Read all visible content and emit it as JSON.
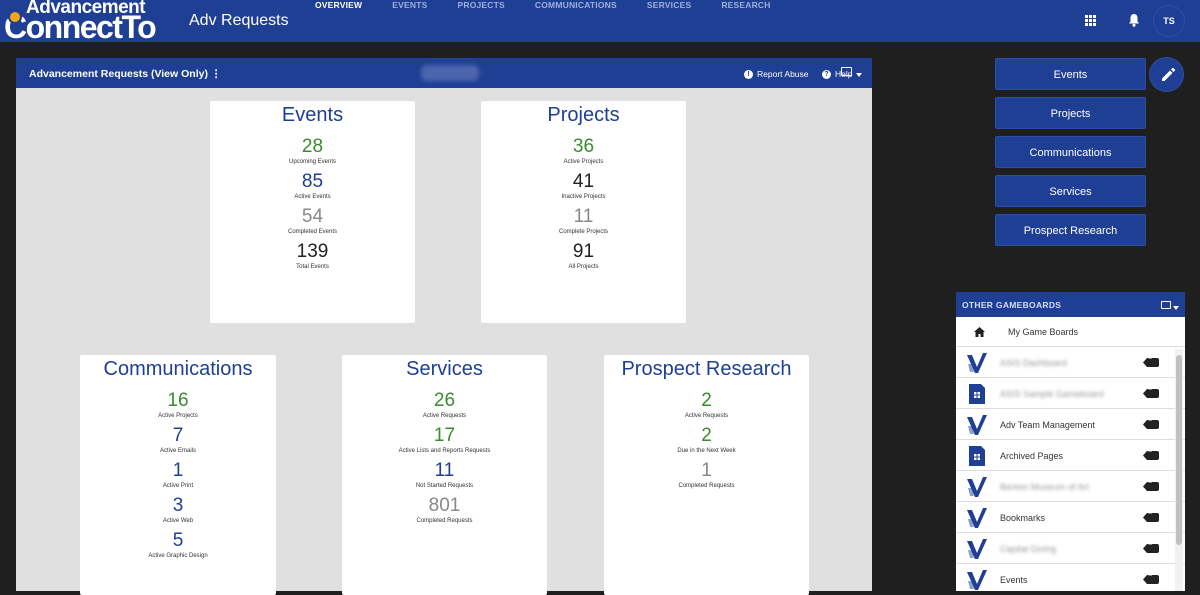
{
  "app": {
    "logo_line1": "Advancement",
    "logo_line2": "ConnectTo",
    "title": "Adv Requests",
    "user_initials": "TS"
  },
  "nav": [
    "OVERVIEW",
    "EVENTS",
    "PROJECTS",
    "COMMUNICATIONS",
    "SERVICES",
    "RESEARCH"
  ],
  "panel": {
    "title": "Advancement Requests (View Only) ⋮",
    "report_abuse": "Report Abuse",
    "help": "Help"
  },
  "cards": {
    "events": {
      "title": "Events",
      "stats": [
        {
          "value": "28",
          "label": "Upcoming Events"
        },
        {
          "value": "85",
          "label": "Active Events"
        },
        {
          "value": "54",
          "label": "Completed Events"
        },
        {
          "value": "139",
          "label": "Total Events"
        }
      ]
    },
    "projects": {
      "title": "Projects",
      "stats": [
        {
          "value": "36",
          "label": "Active Projects"
        },
        {
          "value": "41",
          "label": "Inactive Projects"
        },
        {
          "value": "11",
          "label": "Complete Projects"
        },
        {
          "value": "91",
          "label": "All Projects"
        }
      ]
    },
    "communications": {
      "title": "Communications",
      "stats": [
        {
          "value": "16",
          "label": "Active Projects"
        },
        {
          "value": "7",
          "label": "Active Emails"
        },
        {
          "value": "1",
          "label": "Active Print"
        },
        {
          "value": "3",
          "label": "Active Web"
        },
        {
          "value": "5",
          "label": "Active Graphic Design"
        }
      ]
    },
    "services": {
      "title": "Services",
      "stats": [
        {
          "value": "26",
          "label": "Active Requests"
        },
        {
          "value": "17",
          "label": "Active Lists and Reports Requests"
        },
        {
          "value": "11",
          "label": "Not Started Requests"
        },
        {
          "value": "801",
          "label": "Completed Requests"
        }
      ]
    },
    "research": {
      "title": "Prospect Research",
      "stats": [
        {
          "value": "2",
          "label": "Active Requests"
        },
        {
          "value": "2",
          "label": "Due in the Next Week"
        },
        {
          "value": "1",
          "label": "Completed Requests"
        }
      ]
    }
  },
  "colors": {
    "green": "#3a8a2e",
    "blue": "#1e3f93",
    "gray": "#888888",
    "dark": "#222222"
  },
  "side_buttons": [
    "Events",
    "Projects",
    "Communications",
    "Services",
    "Prospect Research"
  ],
  "gameboards": {
    "header": "OTHER GAMEBOARDS",
    "home": "My Game Boards",
    "items": [
      {
        "name": "ASIS Dashboard",
        "thumb": "v-logo",
        "blurred": true
      },
      {
        "name": "ASIS Sample Gameboard",
        "thumb": "doc",
        "blurred": true
      },
      {
        "name": "Adv Team Management",
        "thumb": "v-logo",
        "blurred": false
      },
      {
        "name": "Archived Pages",
        "thumb": "doc",
        "blurred": false
      },
      {
        "name": "Benton Museum of Art",
        "thumb": "v-logo",
        "blurred": true
      },
      {
        "name": "Bookmarks",
        "thumb": "v-logo",
        "blurred": false
      },
      {
        "name": "Capital Giving",
        "thumb": "v-logo",
        "blurred": true
      },
      {
        "name": "Events",
        "thumb": "v-logo",
        "blurred": false
      }
    ]
  }
}
